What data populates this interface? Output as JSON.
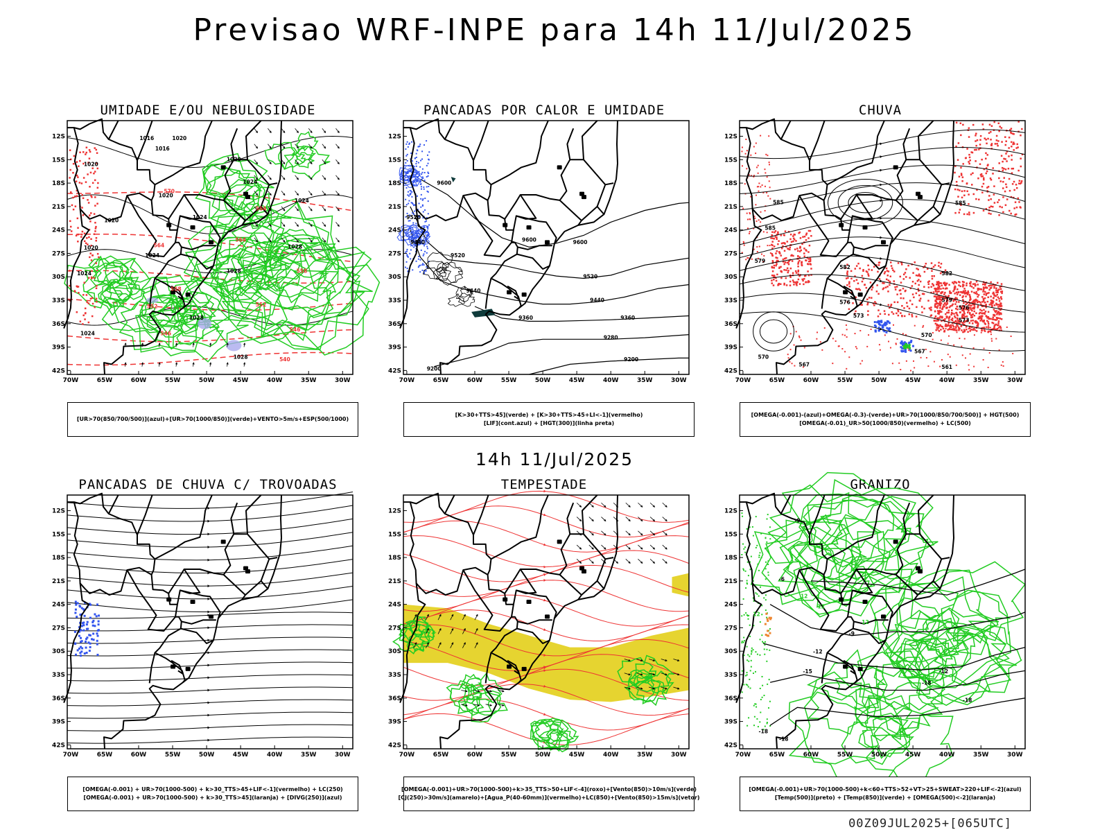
{
  "header": {
    "title": "Previsao WRF-INPE  para 14h 11/Jul/2025"
  },
  "mid": {
    "title": "14h 11/Jul/2025"
  },
  "footer": {
    "run": "00Z09JUL2025+[065UTC]"
  },
  "axes": {
    "lat_ticks": [
      "12S",
      "15S",
      "18S",
      "21S",
      "24S",
      "27S",
      "30S",
      "33S",
      "36S",
      "39S",
      "42S"
    ],
    "lon_ticks": [
      "70W",
      "65W",
      "60W",
      "55W",
      "50W",
      "45W",
      "40W",
      "35W",
      "30W"
    ]
  },
  "colors": {
    "green": "#22cc22",
    "red": "#ee3333",
    "blue": "#3355ee",
    "yellow": "#e6d430",
    "dark": "#0f3b3b",
    "purple": "#aaaaee",
    "orange": "#ee8833"
  },
  "panels": [
    {
      "id": "umidade",
      "title": "UMIDADE E/OU NEBULOSIDADE",
      "legend": [
        "[UR>70(850/700/500)](azul)+[UR>70(1000/850)](verde)+VENTO>5m/s+ESP(500/1000)"
      ],
      "contour_labels": [
        {
          "text": "1016",
          "lon": -58.8,
          "lat": -12.5
        },
        {
          "text": "1016",
          "lon": -56.5,
          "lat": -13.8
        },
        {
          "text": "1020",
          "lon": -67,
          "lat": -15.8
        },
        {
          "text": "1020",
          "lon": -56,
          "lat": -19.8
        },
        {
          "text": "1020",
          "lon": -46,
          "lat": -15.2
        },
        {
          "text": "1024",
          "lon": -43.6,
          "lat": -18.1
        },
        {
          "text": "1024",
          "lon": -51,
          "lat": -22.6
        },
        {
          "text": "1024",
          "lon": -36,
          "lat": -20.5
        },
        {
          "text": "1028",
          "lon": -37,
          "lat": -26.4
        },
        {
          "text": "1028",
          "lon": -46,
          "lat": -29.5
        },
        {
          "text": "1028",
          "lon": -51.5,
          "lat": -35.5
        },
        {
          "text": "1028",
          "lon": -45,
          "lat": -40.5
        },
        {
          "text": "1024",
          "lon": -58,
          "lat": -27.5
        },
        {
          "text": "1020",
          "lon": -67,
          "lat": -26.5
        },
        {
          "text": "1024",
          "lon": -68,
          "lat": -29.8
        },
        {
          "text": "1024",
          "lon": -67.5,
          "lat": -37.5
        },
        {
          "text": "1020",
          "lon": -64,
          "lat": -23
        },
        {
          "text": "1020",
          "lon": -54,
          "lat": -12.5
        },
        {
          "text": "564",
          "lon": -42,
          "lat": -21.5
        },
        {
          "text": "564",
          "lon": -45,
          "lat": -25.5
        },
        {
          "text": "564",
          "lon": -57,
          "lat": -26.2
        },
        {
          "text": "558",
          "lon": -54.5,
          "lat": -31.8
        },
        {
          "text": "552",
          "lon": -58,
          "lat": -34
        },
        {
          "text": "552",
          "lon": -42,
          "lat": -33.8
        },
        {
          "text": "546",
          "lon": -56,
          "lat": -37.5
        },
        {
          "text": "546",
          "lon": -37,
          "lat": -37
        },
        {
          "text": "540",
          "lon": -38.5,
          "lat": -40.8
        },
        {
          "text": "558",
          "lon": -36,
          "lat": -29.5
        },
        {
          "text": "570",
          "lon": -55.5,
          "lat": -19.3
        }
      ]
    },
    {
      "id": "pancadas_calor",
      "title": "PANCADAS POR CALOR E UMIDADE",
      "legend": [
        "[K>30+TTS>45](verde) + [K>30+TTS>45+LI<-1](vermelho)",
        "[LIF](cont.azul) + [HGT(300)](linha preta)"
      ],
      "contour_labels": [
        {
          "text": "9600",
          "lon": -64.5,
          "lat": -18.2
        },
        {
          "text": "9520",
          "lon": -69,
          "lat": -22.6
        },
        {
          "text": "9440",
          "lon": -68.4,
          "lat": -25.8
        },
        {
          "text": "9520",
          "lon": -62.5,
          "lat": -27.5
        },
        {
          "text": "9600",
          "lon": -52,
          "lat": -25.5
        },
        {
          "text": "9600",
          "lon": -44.5,
          "lat": -25.8
        },
        {
          "text": "9520",
          "lon": -43,
          "lat": -30.2
        },
        {
          "text": "9440",
          "lon": -60.2,
          "lat": -32
        },
        {
          "text": "9440",
          "lon": -42,
          "lat": -33.2
        },
        {
          "text": "9360",
          "lon": -52.5,
          "lat": -35.5
        },
        {
          "text": "9360",
          "lon": -37.5,
          "lat": -35.5
        },
        {
          "text": "9280",
          "lon": -40,
          "lat": -38
        },
        {
          "text": "9200",
          "lon": -37,
          "lat": -40.8
        },
        {
          "text": "9200",
          "lon": -66,
          "lat": -42
        }
      ]
    },
    {
      "id": "chuva",
      "title": "CHUVA",
      "legend": [
        "[OMEGA(-0.001)-(azul)+OMEGA(-0.3)-(verde)+UR>70(1000/850/700/500)] + HGT(500)",
        "[OMEGA(-0.01)_UR>50(1000/850)(vermelho) + LC(500)"
      ],
      "contour_labels": [
        {
          "text": "585",
          "lon": -64.8,
          "lat": -20.7
        },
        {
          "text": "585",
          "lon": -38,
          "lat": -20.8
        },
        {
          "text": "585",
          "lon": -66,
          "lat": -24
        },
        {
          "text": "582",
          "lon": -55,
          "lat": -29
        },
        {
          "text": "582",
          "lon": -40,
          "lat": -29.8
        },
        {
          "text": "579",
          "lon": -67.5,
          "lat": -28.2
        },
        {
          "text": "579",
          "lon": -40,
          "lat": -33.2
        },
        {
          "text": "576",
          "lon": -55,
          "lat": -33.5
        },
        {
          "text": "576",
          "lon": -37.5,
          "lat": -34.2
        },
        {
          "text": "573",
          "lon": -53,
          "lat": -35.2
        },
        {
          "text": "573",
          "lon": -37.5,
          "lat": -35.8
        },
        {
          "text": "570",
          "lon": -43,
          "lat": -37.7
        },
        {
          "text": "570",
          "lon": -67,
          "lat": -40.5
        },
        {
          "text": "567",
          "lon": -44,
          "lat": -39.8
        },
        {
          "text": "567",
          "lon": -61,
          "lat": -41.5
        },
        {
          "text": "561",
          "lon": -40,
          "lat": -41.8
        }
      ]
    },
    {
      "id": "trovoadas",
      "title": "PANCADAS DE CHUVA C/ TROVOADAS",
      "legend": [
        "[OMEGA(-0.001) + UR>70(1000-500) + k>30_TTS>45+LIF<-1](vermelho) + LC(250)",
        "[OMEGA(-0.001) + UR>70(1000-500) + k>30_TTS>45](laranja) + [DIVG(250)](azul)"
      ],
      "contour_labels": []
    },
    {
      "id": "tempestade",
      "title": "TEMPESTADE",
      "legend": [
        "[OMEGA(-0.001)+UR>70(1000-500)+k>35_TTS>50+LIF<-4](roxo)+[Vento(850)>10m/s](verde)",
        "[CJ(250)>30m/s](amarelo)+[Agua_P(40-60mm)](vermelho)+LC(850)+[Vento(850)>15m/s](vetor)"
      ],
      "contour_labels": []
    },
    {
      "id": "granizo",
      "title": "GRANIZO",
      "legend": [
        "[OMEGA(-0.001)+UR>70(1000-500)+k<60+TTS>52+VT>25+SWEAT>220+LIF<-2](azul)",
        "[Temp(500)](preto) + [Temp(850)](verde) + [OMEGA(500)<-2](laranja)"
      ],
      "contour_labels": [
        {
          "text": "-9",
          "lon": -62,
          "lat": -13.5
        },
        {
          "text": "-6",
          "lon": -64.3,
          "lat": -21
        },
        {
          "text": "-9",
          "lon": -54,
          "lat": -28
        },
        {
          "text": "-12",
          "lon": -59,
          "lat": -30.3
        },
        {
          "text": "-12",
          "lon": -40.5,
          "lat": -32.8
        },
        {
          "text": "-15",
          "lon": -60.5,
          "lat": -32.8
        },
        {
          "text": "-18",
          "lon": -43,
          "lat": -34.3
        },
        {
          "text": "-18",
          "lon": -37,
          "lat": -36.5
        },
        {
          "text": "-18",
          "lon": -67,
          "lat": -40.5
        },
        {
          "text": "-18",
          "lon": -64,
          "lat": -41.5
        },
        {
          "text": "12",
          "lon": -61,
          "lat": -23.2
        },
        {
          "text": "12",
          "lon": -58.5,
          "lat": -24.5
        },
        {
          "text": "12",
          "lon": -52,
          "lat": -26.5
        },
        {
          "text": "12",
          "lon": -68,
          "lat": -25.5
        }
      ]
    }
  ]
}
